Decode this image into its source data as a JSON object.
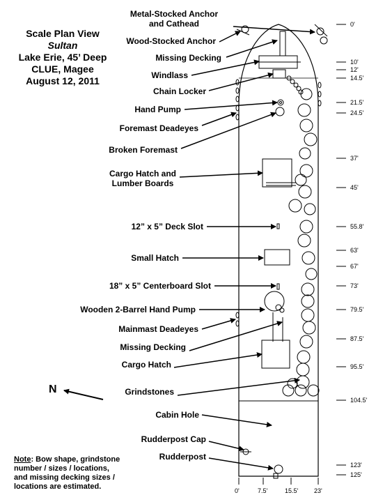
{
  "title": {
    "line1": "Scale Plan View",
    "line2": "Sultan",
    "line3": "Lake Erie, 45’ Deep",
    "line4": "CLUE,  Magee",
    "line5": "August 12, 2011"
  },
  "labels": {
    "metal_anchor_1": "Metal-Stocked Anchor",
    "metal_anchor_2": "and Cathead",
    "wood_anchor": "Wood-Stocked Anchor",
    "missing_decking_bow": "Missing Decking",
    "windlass": "Windlass",
    "chain_locker": "Chain Locker",
    "hand_pump": "Hand Pump",
    "foremast_deadeyes": "Foremast Deadeyes",
    "broken_foremast": "Broken Foremast",
    "cargo_hatch_lumber_1": "Cargo Hatch and",
    "cargo_hatch_lumber_2": "Lumber Boards",
    "deck_slot": "12” x 5” Deck Slot",
    "small_hatch": "Small Hatch",
    "centerboard_slot": "18” x 5” Centerboard Slot",
    "wooden_pump": "Wooden 2-Barrel Hand Pump",
    "mainmast_deadeyes": "Mainmast Deadeyes",
    "missing_decking_mid": "Missing Decking",
    "cargo_hatch": "Cargo Hatch",
    "grindstones": "Grindstones",
    "cabin_hole": "Cabin Hole",
    "rudderpost_cap": "Rudderpost Cap",
    "rudderpost": "Rudderpost"
  },
  "north": "N",
  "measurements": [
    "0'",
    "10'",
    "12'",
    "14.5'",
    "21.5'",
    "24.5'",
    "37'",
    "45'",
    "55.8'",
    "63'",
    "67'",
    "73'",
    "79.5'",
    "87.5'",
    "95.5'",
    "104.5'",
    "123'",
    "125'"
  ],
  "scale": [
    "0'",
    "7.5'",
    "15.5'",
    "23'"
  ],
  "note": {
    "heading": "Note",
    "text": ":  Bow shape, grindstone number / sizes / locations, and missing decking sizes / locations are estimated."
  }
}
